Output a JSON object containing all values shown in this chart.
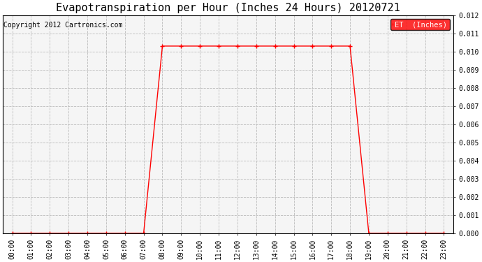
{
  "title": "Evapotranspiration per Hour (Inches 24 Hours) 20120721",
  "copyright_text": "Copyright 2012 Cartronics.com",
  "legend_label": "ET  (Inches)",
  "legend_bg": "#FF0000",
  "legend_text_color": "#FFFFFF",
  "line_color": "#FF0000",
  "marker": "+",
  "marker_size": 4,
  "marker_lw": 1.0,
  "line_width": 1.0,
  "ylim": [
    0.0,
    0.012
  ],
  "yticks": [
    0.0,
    0.001,
    0.002,
    0.003,
    0.004,
    0.005,
    0.006,
    0.007,
    0.008,
    0.009,
    0.01,
    0.011,
    0.012
  ],
  "hours": [
    0,
    1,
    2,
    3,
    4,
    5,
    6,
    7,
    8,
    9,
    10,
    11,
    12,
    13,
    14,
    15,
    16,
    17,
    18,
    19,
    20,
    21,
    22,
    23
  ],
  "values": [
    0,
    0,
    0,
    0,
    0,
    0,
    0,
    0,
    0.0103,
    0.0103,
    0.0103,
    0.0103,
    0.0103,
    0.0103,
    0.0103,
    0.0103,
    0.0103,
    0.0103,
    0.0103,
    0,
    0,
    0,
    0,
    0
  ],
  "x_labels": [
    "00:00",
    "01:00",
    "02:00",
    "03:00",
    "04:00",
    "05:00",
    "06:00",
    "07:00",
    "08:00",
    "09:00",
    "10:00",
    "11:00",
    "12:00",
    "13:00",
    "14:00",
    "15:00",
    "16:00",
    "17:00",
    "18:00",
    "19:00",
    "20:00",
    "21:00",
    "22:00",
    "23:00"
  ],
  "bg_color": "#FFFFFF",
  "plot_bg_color": "#F5F5F5",
  "grid_color": "#BBBBBB",
  "grid_linestyle": "--",
  "title_fontsize": 11,
  "tick_fontsize": 7,
  "copyright_fontsize": 7,
  "legend_fontsize": 7.5,
  "fig_width": 6.9,
  "fig_height": 3.75,
  "dpi": 100
}
